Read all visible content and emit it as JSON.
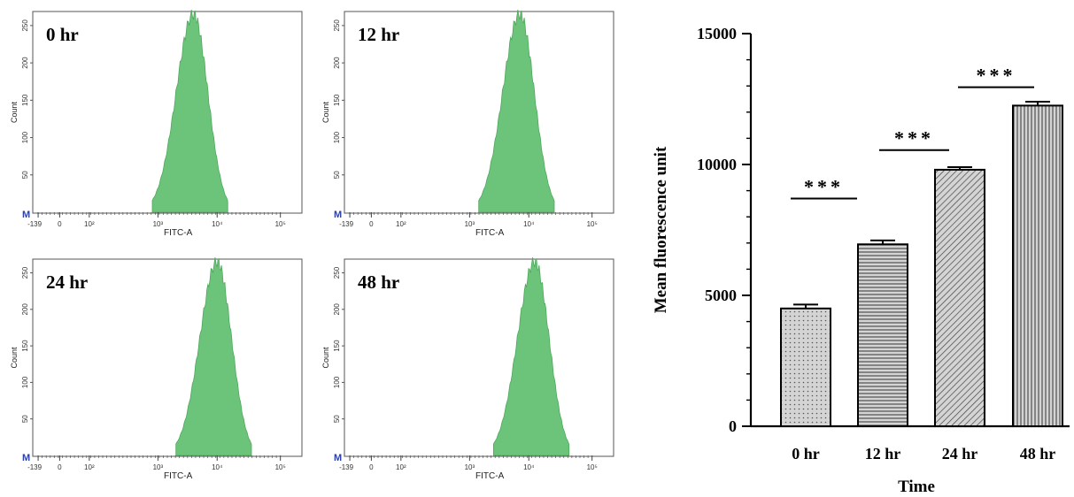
{
  "histograms": [
    {
      "id": "h0",
      "panel_label": "0 hr",
      "y_axis_label": "Count",
      "x_axis_label": "FITC-A",
      "y_ticks": [
        "50",
        "100",
        "150",
        "200",
        "250"
      ],
      "x_ticks": [
        "-139",
        "0",
        "10²",
        "10³",
        "10⁴",
        "10⁵"
      ],
      "marker_label": "M",
      "peak_position_decade": 3.6,
      "color": "#6cc47a"
    },
    {
      "id": "h12",
      "panel_label": "12 hr",
      "y_axis_label": "Count",
      "x_axis_label": "FITC-A",
      "y_ticks": [
        "50",
        "100",
        "150",
        "200",
        "250"
      ],
      "x_ticks": [
        "-139",
        "0",
        "10²",
        "10³",
        "10⁴",
        "10⁵"
      ],
      "marker_label": "M",
      "peak_position_decade": 3.85,
      "color": "#6cc47a"
    },
    {
      "id": "h24",
      "panel_label": "24 hr",
      "y_axis_label": "Count",
      "x_axis_label": "FITC-A",
      "y_ticks": [
        "50",
        "100",
        "150",
        "200",
        "250"
      ],
      "x_ticks": [
        "-139",
        "0",
        "10²",
        "10³",
        "10⁴",
        "10⁵"
      ],
      "marker_label": "M",
      "peak_position_decade": 4.0,
      "color": "#6cc47a"
    },
    {
      "id": "h48",
      "panel_label": "48 hr",
      "y_axis_label": "Count",
      "x_axis_label": "FITC-A",
      "y_ticks": [
        "50",
        "100",
        "150",
        "200",
        "250"
      ],
      "x_ticks": [
        "-139",
        "0",
        "10²",
        "10³",
        "10⁴",
        "10⁵"
      ],
      "marker_label": "M",
      "peak_position_decade": 4.1,
      "color": "#6cc47a"
    }
  ],
  "chart_data": {
    "type": "bar",
    "categories": [
      "0 hr",
      "12 hr",
      "24 hr",
      "48 hr"
    ],
    "values": [
      4500,
      6950,
      9800,
      12250
    ],
    "errors": [
      150,
      150,
      100,
      150
    ],
    "xlabel": "Time",
    "ylabel": "Mean fluorescence unit",
    "ylim": [
      0,
      15000
    ],
    "y_ticks": [
      "0",
      "5000",
      "10000",
      "15000"
    ],
    "y_tick_values": [
      0,
      5000,
      10000,
      15000
    ],
    "significance": [
      {
        "between": [
          "0 hr",
          "12 hr"
        ],
        "label": "***"
      },
      {
        "between": [
          "12 hr",
          "24 hr"
        ],
        "label": "***"
      },
      {
        "between": [
          "24 hr",
          "48 hr"
        ],
        "label": "***"
      }
    ],
    "bar_patterns": [
      "dots",
      "horizontal-lines",
      "diagonal-lines",
      "vertical-lines"
    ],
    "bar_fill": "#cfcfcf",
    "grid": false
  }
}
